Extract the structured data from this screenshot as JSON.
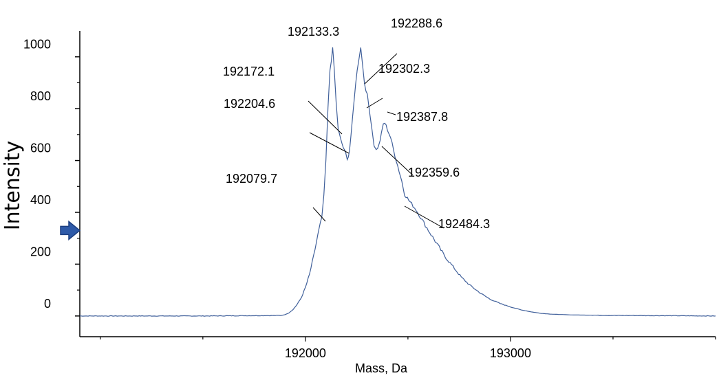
{
  "chart_data": {
    "type": "line",
    "title": "",
    "xlabel": "Mass, Da",
    "ylabel": "Intensity",
    "x_ticks": [
      192000,
      193000
    ],
    "y_ticks": [
      0,
      200,
      400,
      600,
      800,
      1000
    ],
    "xlim": [
      190900,
      194000
    ],
    "ylim": [
      -80,
      1100
    ],
    "grid": false,
    "series": [
      {
        "color": "#3f5f9a",
        "points": [
          [
            190900,
            0
          ],
          [
            191500,
            0
          ],
          [
            191880,
            2
          ],
          [
            191900,
            5
          ],
          [
            191920,
            12
          ],
          [
            191940,
            25
          ],
          [
            191960,
            45
          ],
          [
            191980,
            70
          ],
          [
            192000,
            110
          ],
          [
            192020,
            160
          ],
          [
            192040,
            230
          ],
          [
            192060,
            310
          ],
          [
            192080,
            380
          ],
          [
            192090,
            460
          ],
          [
            192100,
            600
          ],
          [
            192110,
            800
          ],
          [
            192120,
            950
          ],
          [
            192133,
            1030
          ],
          [
            192140,
            960
          ],
          [
            192150,
            820
          ],
          [
            192160,
            720
          ],
          [
            192172,
            680
          ],
          [
            192185,
            650
          ],
          [
            192195,
            630
          ],
          [
            192204,
            600
          ],
          [
            192215,
            640
          ],
          [
            192230,
            760
          ],
          [
            192245,
            900
          ],
          [
            192260,
            990
          ],
          [
            192270,
            1040
          ],
          [
            192280,
            960
          ],
          [
            192288,
            900
          ],
          [
            192302,
            850
          ],
          [
            192315,
            780
          ],
          [
            192325,
            720
          ],
          [
            192335,
            660
          ],
          [
            192345,
            640
          ],
          [
            192359,
            660
          ],
          [
            192370,
            700
          ],
          [
            192380,
            740
          ],
          [
            192387,
            745
          ],
          [
            192400,
            720
          ],
          [
            192415,
            690
          ],
          [
            192430,
            640
          ],
          [
            192450,
            580
          ],
          [
            192470,
            520
          ],
          [
            192484,
            470
          ],
          [
            192510,
            440
          ],
          [
            192540,
            410
          ],
          [
            192570,
            370
          ],
          [
            192600,
            330
          ],
          [
            192640,
            280
          ],
          [
            192680,
            230
          ],
          [
            192720,
            190
          ],
          [
            192760,
            150
          ],
          [
            192800,
            120
          ],
          [
            192850,
            90
          ],
          [
            192900,
            65
          ],
          [
            192950,
            48
          ],
          [
            193000,
            35
          ],
          [
            193050,
            24
          ],
          [
            193100,
            16
          ],
          [
            193150,
            10
          ],
          [
            193200,
            7
          ],
          [
            193300,
            4
          ],
          [
            193500,
            2
          ],
          [
            193800,
            1
          ],
          [
            194000,
            0
          ]
        ]
      }
    ],
    "annotations": [
      {
        "text": "192133.3",
        "x": 192133.3
      },
      {
        "text": "192288.6",
        "x": 192288.6
      },
      {
        "text": "192172.1",
        "x": 192172.1
      },
      {
        "text": "192302.3",
        "x": 192302.3
      },
      {
        "text": "192204.6",
        "x": 192204.6
      },
      {
        "text": "192387.8",
        "x": 192387.8
      },
      {
        "text": "192359.6",
        "x": 192359.6
      },
      {
        "text": "192079.7",
        "x": 192079.7
      },
      {
        "text": "192484.3",
        "x": 192484.3
      }
    ],
    "marker": {
      "y": 330,
      "color": "#2e5aa8"
    }
  }
}
